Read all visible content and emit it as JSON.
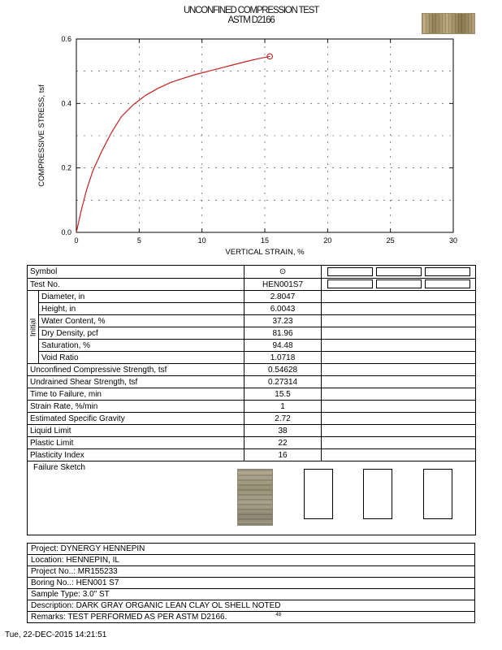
{
  "header": {
    "title_line1": "UNCONFINED COMPRESSION TEST",
    "title_line2": "ASTM D2166",
    "core_photo_icon": "soil-core-photo"
  },
  "chart_data": {
    "type": "line",
    "title": "",
    "xlabel": "VERTICAL STRAIN, %",
    "ylabel": "COMPRESSIVE STRESS, tsf",
    "xlim": [
      0,
      30
    ],
    "ylim": [
      0,
      0.6
    ],
    "xticks": [
      "0",
      "5",
      "10",
      "15",
      "20",
      "25",
      "30"
    ],
    "yticks": [
      "0.0",
      "0.2",
      "0.4",
      "0.6"
    ],
    "xgrid": [
      5,
      10,
      15,
      20,
      25
    ],
    "ygrid": [
      0.1,
      0.2,
      0.3,
      0.4,
      0.5
    ],
    "grid_style": "dashed",
    "legend_position": "none",
    "line_color": "#c22222",
    "series": [
      {
        "name": "HEN001S7",
        "marker": "open-circle-at-end",
        "x": [
          0,
          0.4,
          0.8,
          1.3,
          2,
          2.8,
          3.6,
          4.5,
          5.5,
          6.5,
          7.5,
          8.5,
          9.5,
          10.5,
          11.5,
          12.5,
          13.5,
          14.5,
          15.4
        ],
        "y": [
          0,
          0.07,
          0.13,
          0.19,
          0.25,
          0.31,
          0.36,
          0.395,
          0.425,
          0.447,
          0.465,
          0.478,
          0.49,
          0.5,
          0.51,
          0.52,
          0.53,
          0.539,
          0.546
        ]
      }
    ]
  },
  "results_table": {
    "symbol_glyph": "⊙",
    "empty_specimen_boxes": 3,
    "failure_sketch_label": "Failure Sketch",
    "rows": [
      {
        "label": "Symbol",
        "value": "",
        "symbol": true,
        "extras": true
      },
      {
        "label": "Test No.",
        "value": "HEN001S7",
        "extras": true
      },
      {
        "label": "Diameter, in",
        "value": "2.8047",
        "group": "Initial"
      },
      {
        "label": "Height, in",
        "value": "6.0043",
        "group": "Initial"
      },
      {
        "label": "Water Content, %",
        "value": "37.23",
        "group": "Initial"
      },
      {
        "label": "Dry Density, pcf",
        "value": "81.96",
        "group": "Initial"
      },
      {
        "label": "Saturation, %",
        "value": "94.48",
        "group": "Initial"
      },
      {
        "label": "Void Ratio",
        "value": "1.0718",
        "group": "Initial"
      },
      {
        "label": "Unconfined Compressive Strength, tsf",
        "value": "0.54628"
      },
      {
        "label": "Undrained Shear Strength, tsf",
        "value": "0.27314"
      },
      {
        "label": "Time to Failure, min",
        "value": "15.5"
      },
      {
        "label": "Strain Rate, %/min",
        "value": "1"
      },
      {
        "label": "Estimated Specific Gravity",
        "value": "2.72"
      },
      {
        "label": "Liquid Limit",
        "value": "38"
      },
      {
        "label": "Plastic Limit",
        "value": "22"
      },
      {
        "label": "Plasticity Index",
        "value": "16"
      }
    ]
  },
  "project_info": {
    "lines": [
      "Project: DYNERGY HENNEPIN",
      "Location: HENNEPIN, IL",
      "Project No..: MR155233",
      "Boring No..: HEN001 S7",
      "Sample Type: 3.0\" ST",
      "Description: DARK GRAY ORGANIC LEAN CLAY OL SHELL NOTED",
      "Remarks: TEST PERFORMED AS PER ASTM D2166."
    ],
    "remarks_note": "48"
  },
  "footer": {
    "timestamp": "Tue, 22-DEC-2015 14:21:51"
  }
}
